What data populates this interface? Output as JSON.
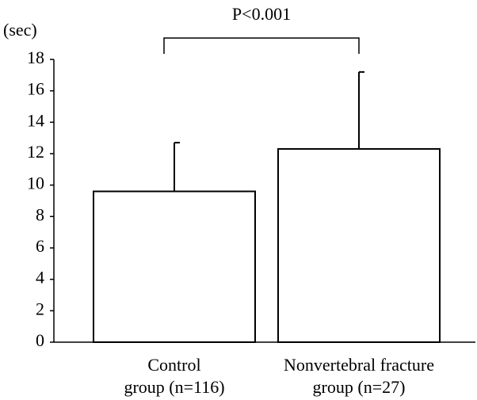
{
  "chart_data": {
    "type": "bar",
    "y_label": "(sec)",
    "annotation": "P<0.001",
    "categories": [
      "Control\ngroup (n=116)",
      "Nonvertebral fracture\ngroup (n=27)"
    ],
    "values": [
      9.6,
      12.3
    ],
    "errors": [
      3.1,
      4.9
    ],
    "color": "#ffffff",
    "ylim": [
      0,
      18
    ],
    "yticks": [
      0,
      2,
      4,
      6,
      8,
      10,
      12,
      14,
      16,
      18
    ],
    "grid": false
  }
}
